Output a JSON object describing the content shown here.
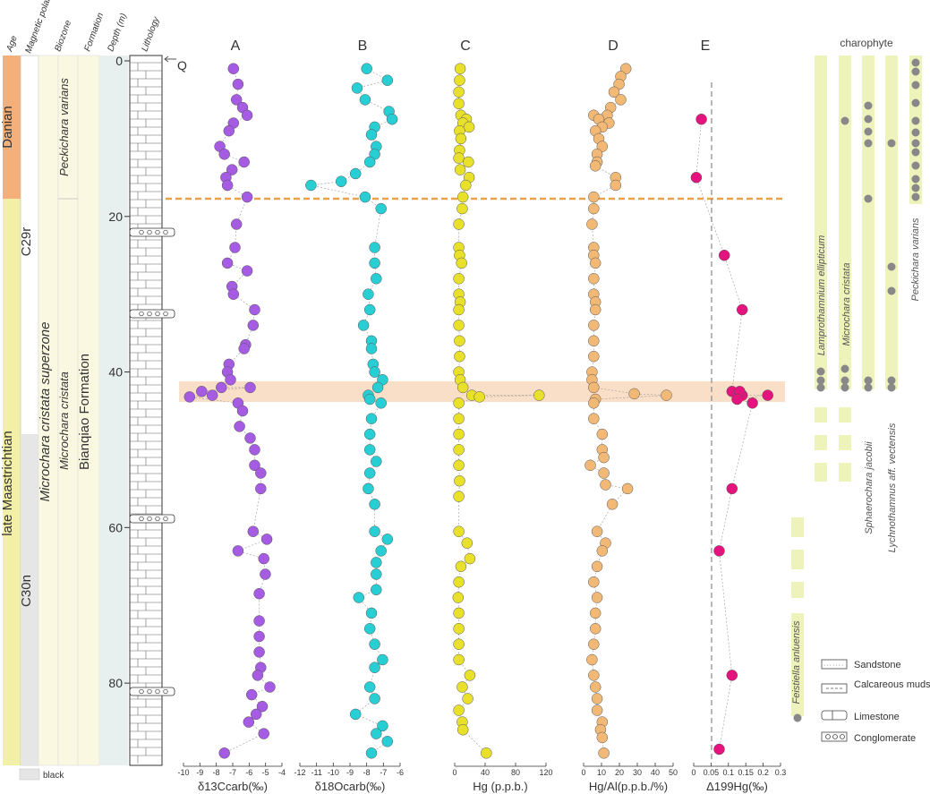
{
  "header": {
    "age": "Age",
    "magnetic_polarity": "Magnetic polarity",
    "biozone": "Biozone",
    "formation": "Formation",
    "depth": "Depth (m)",
    "lithology": "Lithology"
  },
  "strat": {
    "ages": [
      "Danian",
      "late Maastrichtian"
    ],
    "polarity": [
      "C29r",
      "C30n"
    ],
    "superzone": "Microchara cristata superzone",
    "subzones": [
      "Peckichara varians",
      "Microchara cristata"
    ],
    "formation": "Bianqiao Formation",
    "quaternary": "Q",
    "legend_black": "black"
  },
  "charophyte": {
    "title": "charophyte",
    "taxa": [
      "Lamprothamnium ellipticum",
      "Microchara cristata",
      "Sphaerochara jacobii",
      "Lychnothamnus aff. vectensis",
      "Peckichara varians",
      "Feistiella anluensis"
    ]
  },
  "lith_legend": [
    "Sandstone",
    "Calcareous mudstone",
    "Limestone",
    "Conglomerate"
  ],
  "colors": {
    "danian": "#f5b07a",
    "maastrichtian": "#f1f0a6",
    "biozone_fill": "#fbf8e1",
    "band": "#f8d8be",
    "boundary": "#e9a24a",
    "taxa_bar": "#eef2bb",
    "A": "#a65be3",
    "B": "#27cfd4",
    "C": "#e8e02a",
    "D": "#f2b976",
    "E": "#e5137d"
  },
  "chart_data": [
    {
      "type": "scatter",
      "panel": "A",
      "xlabel": "δ13Ccarb(‰)",
      "xticks": [
        "-10",
        "-9",
        "-8",
        "-7",
        "-6",
        "-5",
        "-4"
      ],
      "xlim": [
        -10.5,
        -4
      ],
      "ylim": [
        0,
        90
      ],
      "y_axis": "Depth (m)",
      "points": [
        [
          -7.2,
          1
        ],
        [
          -6.9,
          3
        ],
        [
          -7,
          5
        ],
        [
          -6.6,
          6
        ],
        [
          -6.3,
          7
        ],
        [
          -7.2,
          8
        ],
        [
          -7.5,
          9
        ],
        [
          -8.1,
          11
        ],
        [
          -7.8,
          12
        ],
        [
          -6.5,
          13
        ],
        [
          -7.3,
          14
        ],
        [
          -7.7,
          15
        ],
        [
          -7.6,
          16
        ],
        [
          -6.3,
          17.5
        ],
        [
          -7,
          21
        ],
        [
          -7.1,
          24
        ],
        [
          -7.6,
          26
        ],
        [
          -6.3,
          27
        ],
        [
          -7.3,
          29
        ],
        [
          -7.2,
          30
        ],
        [
          -5.8,
          32
        ],
        [
          -5.9,
          34
        ],
        [
          -6.4,
          36.5
        ],
        [
          -6.5,
          37
        ],
        [
          -7.5,
          39
        ],
        [
          -7.6,
          40
        ],
        [
          -7.4,
          41
        ],
        [
          -8,
          42
        ],
        [
          -6.1,
          42
        ],
        [
          -10.1,
          43.2
        ],
        [
          -8.6,
          43
        ],
        [
          -9.3,
          42.5
        ],
        [
          -6.9,
          44
        ],
        [
          -6.6,
          45
        ],
        [
          -6.8,
          47
        ],
        [
          -6.1,
          48.5
        ],
        [
          -5.8,
          50
        ],
        [
          -5.8,
          52
        ],
        [
          -5.4,
          53
        ],
        [
          -5.4,
          55
        ],
        [
          -5.9,
          60.5
        ],
        [
          -5,
          61.5
        ],
        [
          -6.9,
          63
        ],
        [
          -5.2,
          64
        ],
        [
          -5.1,
          66
        ],
        [
          -5.5,
          68.5
        ],
        [
          -5.5,
          72
        ],
        [
          -5.5,
          74
        ],
        [
          -5.5,
          76
        ],
        [
          -5.4,
          78
        ],
        [
          -5.6,
          79
        ],
        [
          -4.8,
          80.5
        ],
        [
          -6,
          81.5
        ],
        [
          -5.3,
          83
        ],
        [
          -5.7,
          84
        ],
        [
          -6.2,
          85
        ],
        [
          -5.2,
          86.5
        ],
        [
          -7.8,
          89
        ]
      ]
    },
    {
      "type": "scatter",
      "panel": "B",
      "xlabel": "δ18Ocarb(‰)",
      "xticks": [
        "-12",
        "-11",
        "-10",
        "-9",
        "-8",
        "-7",
        "-6"
      ],
      "xlim": [
        -12.3,
        -6
      ],
      "ylim": [
        0,
        90
      ],
      "y_axis": "Depth (m)",
      "points": [
        [
          -8.1,
          1
        ],
        [
          -6.8,
          2.5
        ],
        [
          -8.7,
          3.5
        ],
        [
          -8.2,
          5
        ],
        [
          -6.7,
          6.5
        ],
        [
          -6.5,
          7.5
        ],
        [
          -7.6,
          8.5
        ],
        [
          -7.8,
          9.5
        ],
        [
          -7.5,
          11
        ],
        [
          -7.6,
          12
        ],
        [
          -7.9,
          13
        ],
        [
          -8.8,
          14.5
        ],
        [
          -9.7,
          15.5
        ],
        [
          -11.6,
          16
        ],
        [
          -8.2,
          17.5
        ],
        [
          -7.2,
          19
        ],
        [
          -7.6,
          24
        ],
        [
          -7.6,
          26
        ],
        [
          -7.5,
          28
        ],
        [
          -8,
          30
        ],
        [
          -7.9,
          32
        ],
        [
          -8.3,
          34
        ],
        [
          -7.8,
          36
        ],
        [
          -7.8,
          37
        ],
        [
          -7.7,
          39
        ],
        [
          -7.6,
          40
        ],
        [
          -7.1,
          41
        ],
        [
          -7.4,
          42
        ],
        [
          -8,
          43
        ],
        [
          -7.9,
          43.5
        ],
        [
          -7.2,
          44
        ],
        [
          -7.8,
          46
        ],
        [
          -7.9,
          48
        ],
        [
          -7.9,
          50
        ],
        [
          -7.5,
          51.5
        ],
        [
          -7.9,
          53
        ],
        [
          -8,
          55
        ],
        [
          -7.6,
          57
        ],
        [
          -7.6,
          60.5
        ],
        [
          -6.8,
          61.5
        ],
        [
          -7.2,
          63
        ],
        [
          -7.5,
          64.5
        ],
        [
          -7.5,
          66
        ],
        [
          -7.5,
          68
        ],
        [
          -8.6,
          69
        ],
        [
          -7.8,
          71
        ],
        [
          -7.9,
          73
        ],
        [
          -7.6,
          75
        ],
        [
          -7.1,
          77
        ],
        [
          -7.6,
          78
        ],
        [
          -7.9,
          80.5
        ],
        [
          -7.6,
          82
        ],
        [
          -8.8,
          84
        ],
        [
          -7.1,
          85.5
        ],
        [
          -7.5,
          86.5
        ],
        [
          -6.8,
          87.5
        ],
        [
          -7.8,
          89
        ]
      ]
    },
    {
      "type": "scatter",
      "panel": "C",
      "xlabel": "Hg (p.p.b.)",
      "xticks": [
        "0",
        "40",
        "80",
        "120"
      ],
      "xlim": [
        -3,
        130
      ],
      "ylim": [
        0,
        90
      ],
      "y_axis": "Depth (m)",
      "points": [
        [
          5,
          1
        ],
        [
          4,
          2.5
        ],
        [
          3,
          4
        ],
        [
          3,
          5.5
        ],
        [
          6,
          7
        ],
        [
          14,
          7.5
        ],
        [
          9,
          8
        ],
        [
          18,
          8.5
        ],
        [
          4,
          9
        ],
        [
          6,
          10
        ],
        [
          4,
          11.5
        ],
        [
          3,
          12.5
        ],
        [
          17,
          13
        ],
        [
          5,
          14
        ],
        [
          18,
          15
        ],
        [
          13,
          16
        ],
        [
          9,
          17.5
        ],
        [
          8,
          19
        ],
        [
          3,
          21
        ],
        [
          3,
          24
        ],
        [
          4,
          25
        ],
        [
          7,
          26
        ],
        [
          3,
          28
        ],
        [
          3,
          30
        ],
        [
          5,
          31
        ],
        [
          3,
          32
        ],
        [
          3,
          34
        ],
        [
          4,
          36
        ],
        [
          4,
          38
        ],
        [
          3,
          40
        ],
        [
          5,
          41
        ],
        [
          9,
          42
        ],
        [
          22,
          43
        ],
        [
          33,
          43.2
        ],
        [
          120,
          43
        ],
        [
          3,
          44
        ],
        [
          3,
          46
        ],
        [
          3,
          48
        ],
        [
          3,
          50
        ],
        [
          3,
          52
        ],
        [
          4,
          54
        ],
        [
          3,
          56
        ],
        [
          3,
          60.5
        ],
        [
          15,
          62
        ],
        [
          19,
          64
        ],
        [
          6,
          65
        ],
        [
          3,
          67
        ],
        [
          2,
          69
        ],
        [
          3,
          71
        ],
        [
          3,
          73
        ],
        [
          3,
          75
        ],
        [
          3,
          77
        ],
        [
          19,
          79
        ],
        [
          8,
          80.5
        ],
        [
          16,
          82
        ],
        [
          3,
          83.5
        ],
        [
          8,
          85
        ],
        [
          9,
          86
        ],
        [
          43,
          89
        ]
      ]
    },
    {
      "type": "scatter",
      "panel": "D",
      "xlabel": "Hg/Al(p.p.b./%)",
      "xticks": [
        "0",
        "10",
        "20",
        "30",
        "40",
        "50"
      ],
      "xlim": [
        -1,
        52
      ],
      "ylim": [
        0,
        90
      ],
      "y_axis": "Depth (m)",
      "points": [
        [
          24,
          1
        ],
        [
          21,
          2
        ],
        [
          20,
          3
        ],
        [
          17,
          4
        ],
        [
          21,
          5
        ],
        [
          15,
          6
        ],
        [
          13,
          7
        ],
        [
          5,
          7
        ],
        [
          8,
          7.5
        ],
        [
          14,
          8
        ],
        [
          10,
          8.5
        ],
        [
          6,
          9
        ],
        [
          8,
          10
        ],
        [
          10,
          11
        ],
        [
          7,
          12
        ],
        [
          7,
          13
        ],
        [
          6,
          13.5
        ],
        [
          18,
          15
        ],
        [
          18,
          16
        ],
        [
          5,
          17.5
        ],
        [
          5,
          19
        ],
        [
          4,
          21
        ],
        [
          5,
          24
        ],
        [
          5,
          25
        ],
        [
          6,
          26
        ],
        [
          5,
          28
        ],
        [
          5,
          30
        ],
        [
          6,
          31
        ],
        [
          6,
          32
        ],
        [
          5,
          34
        ],
        [
          5,
          36
        ],
        [
          5,
          38
        ],
        [
          4,
          40
        ],
        [
          4,
          41
        ],
        [
          5,
          42
        ],
        [
          29,
          42.8
        ],
        [
          48,
          43
        ],
        [
          6,
          43.5
        ],
        [
          5,
          44
        ],
        [
          5,
          46
        ],
        [
          10,
          48
        ],
        [
          10,
          50
        ],
        [
          11,
          51
        ],
        [
          3,
          52
        ],
        [
          11,
          53
        ],
        [
          12,
          54.5
        ],
        [
          25,
          55
        ],
        [
          16,
          57
        ],
        [
          7,
          60.5
        ],
        [
          12,
          62
        ],
        [
          10,
          63
        ],
        [
          7,
          65
        ],
        [
          5,
          67
        ],
        [
          7,
          69
        ],
        [
          6,
          71
        ],
        [
          6,
          73
        ],
        [
          5,
          75
        ],
        [
          4,
          77
        ],
        [
          5,
          79
        ],
        [
          6,
          80.5
        ],
        [
          7,
          82
        ],
        [
          7,
          83.5
        ],
        [
          10,
          85
        ],
        [
          9,
          86
        ],
        [
          10,
          87
        ],
        [
          11,
          89
        ]
      ]
    },
    {
      "type": "scatter",
      "panel": "E",
      "xlabel": "Δ199Hg(‰)",
      "xticks": [
        "0",
        "0.05",
        "0.1",
        "0.15",
        "0.2",
        "0.3"
      ],
      "xlim": [
        -0.02,
        0.32
      ],
      "ylim": [
        0,
        90
      ],
      "y_axis": "Depth (m)",
      "points": [
        [
          0.01,
          7.5
        ],
        [
          -0.01,
          15
        ],
        [
          0.1,
          25
        ],
        [
          0.17,
          32
        ],
        [
          0.13,
          42.5
        ],
        [
          0.17,
          43
        ],
        [
          0.21,
          44
        ],
        [
          0.16,
          42.5
        ],
        [
          0.15,
          43.5
        ],
        [
          0.27,
          43
        ],
        [
          0.13,
          55
        ],
        [
          0.08,
          63
        ],
        [
          0.13,
          79
        ],
        [
          0.08,
          88.5
        ]
      ]
    }
  ]
}
